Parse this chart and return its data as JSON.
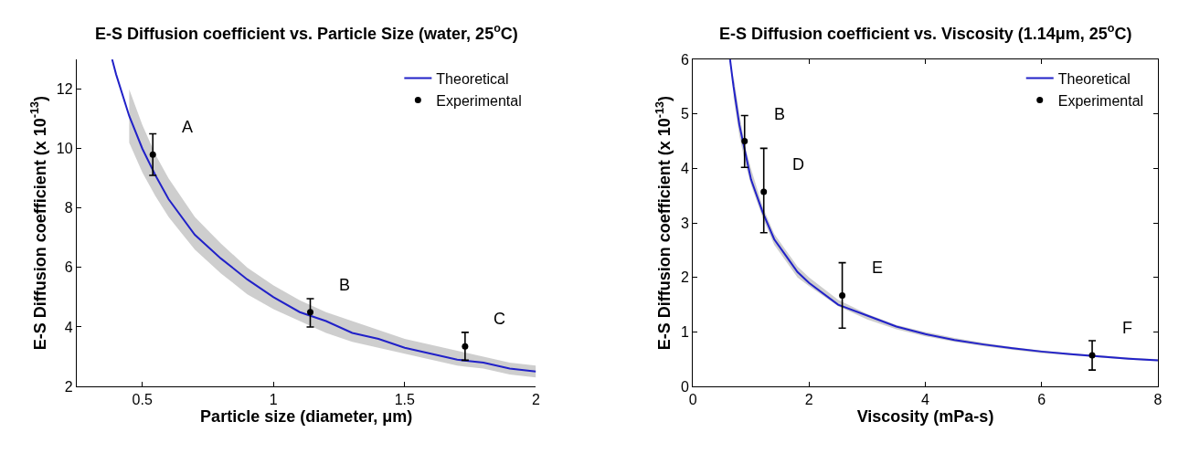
{
  "chart_data": [
    {
      "type": "line",
      "title": "E-S Diffusion coefficient vs. Particle Size (water, 25$^{o}$C)",
      "xlabel": "Particle size (diameter, μm)",
      "ylabel": "E-S Diffusion coefficient (x 10$^{-13}$)",
      "xlim": [
        0.25,
        2
      ],
      "xticks": [
        0.5,
        1,
        1.5,
        2
      ],
      "ylim": [
        2,
        13
      ],
      "yticks": [
        2,
        4,
        6,
        8,
        10,
        12
      ],
      "legend": "top right",
      "series": [
        {
          "name": "Theoretical",
          "color": "#2121c8",
          "marker": "none",
          "line_style": "solid",
          "x": [
            0.385,
            0.4,
            0.45,
            0.5,
            0.55,
            0.6,
            0.7,
            0.8,
            0.9,
            1.0,
            1.1,
            1.2,
            1.3,
            1.4,
            1.5,
            1.6,
            1.7,
            1.8,
            1.9,
            2.0
          ],
          "values": [
            13.0,
            12.5,
            11.1,
            10.0,
            9.1,
            8.3,
            7.1,
            6.3,
            5.6,
            5.0,
            4.5,
            4.2,
            3.8,
            3.6,
            3.3,
            3.1,
            2.9,
            2.8,
            2.6,
            2.5
          ],
          "lower": [
            null,
            null,
            10.2,
            9.2,
            8.4,
            7.7,
            6.6,
            5.8,
            5.1,
            4.6,
            4.2,
            3.8,
            3.5,
            3.3,
            3.1,
            2.9,
            2.7,
            2.6,
            2.4,
            2.3
          ],
          "upper": [
            null,
            null,
            12.0,
            10.8,
            9.8,
            9.0,
            7.7,
            6.8,
            6.0,
            5.4,
            4.9,
            4.5,
            4.2,
            3.9,
            3.6,
            3.4,
            3.2,
            3.0,
            2.8,
            2.7
          ]
        },
        {
          "name": "Experimental",
          "type": "scatter",
          "color": "#000000",
          "marker": "circle",
          "x": [
            0.54,
            1.14,
            1.73
          ],
          "values": [
            9.8,
            4.5,
            3.35
          ],
          "errors": [
            [
              9.1,
              10.5
            ],
            [
              4.0,
              4.95
            ],
            [
              2.88,
              3.82
            ]
          ]
        }
      ],
      "annotations": [
        {
          "text": "A",
          "x": 0.54,
          "y": 9.8
        },
        {
          "text": "B",
          "x": 1.14,
          "y": 4.5
        },
        {
          "text": "C",
          "x": 1.73,
          "y": 3.35
        }
      ]
    },
    {
      "type": "line",
      "title": "E-S Diffusion coefficient vs. Viscosity (1.14μm, 25$^{o}$C)",
      "xlabel": "Viscosity (mPa-s)",
      "ylabel": "E-S Diffusion coefficient (x 10$^{-13}$)",
      "xlim": [
        0,
        8
      ],
      "xticks": [
        0,
        2,
        4,
        6,
        8
      ],
      "ylim": [
        0,
        6
      ],
      "yticks": [
        0,
        1,
        2,
        3,
        4,
        5,
        6
      ],
      "legend": "top right",
      "series": [
        {
          "name": "Theoretical",
          "color": "#2121c8",
          "marker": "none",
          "line_style": "solid",
          "x": [
            0.64,
            0.7,
            0.8,
            0.9,
            1.0,
            1.2,
            1.4,
            1.6,
            1.8,
            2.0,
            2.5,
            3,
            3.5,
            4,
            4.5,
            5,
            5.5,
            6,
            6.5,
            7,
            7.5,
            8
          ],
          "values": [
            6.0,
            5.5,
            4.8,
            4.3,
            3.8,
            3.2,
            2.7,
            2.4,
            2.1,
            1.9,
            1.5,
            1.3,
            1.1,
            0.96,
            0.85,
            0.77,
            0.7,
            0.64,
            0.59,
            0.55,
            0.51,
            0.48
          ],
          "lower": [
            null,
            5.3,
            4.6,
            4.1,
            3.7,
            3.1,
            2.6,
            2.3,
            2.0,
            1.84,
            1.47,
            1.23,
            1.05,
            0.92,
            0.82,
            0.74,
            0.67,
            0.61,
            0.57,
            0.53,
            0.49,
            0.46
          ],
          "upper": [
            null,
            5.7,
            5.0,
            4.4,
            4.0,
            3.3,
            2.8,
            2.5,
            2.2,
            2.0,
            1.59,
            1.33,
            1.13,
            1.0,
            0.89,
            0.8,
            0.72,
            0.66,
            0.61,
            0.57,
            0.53,
            0.5
          ]
        },
        {
          "name": "Experimental",
          "type": "scatter",
          "color": "#000000",
          "marker": "circle",
          "x": [
            0.89,
            1.22,
            2.57,
            6.87
          ],
          "values": [
            4.5,
            3.57,
            1.67,
            0.57
          ],
          "errors": [
            [
              4.02,
              4.97
            ],
            [
              2.82,
              4.37
            ],
            [
              1.07,
              2.27
            ],
            [
              0.3,
              0.84
            ]
          ]
        }
      ],
      "annotations": [
        {
          "text": "B",
          "x": 0.89,
          "y": 4.5
        },
        {
          "text": "D",
          "x": 1.22,
          "y": 3.57
        },
        {
          "text": "E",
          "x": 2.57,
          "y": 1.67
        },
        {
          "text": "F",
          "x": 6.87,
          "y": 0.57
        }
      ]
    }
  ]
}
